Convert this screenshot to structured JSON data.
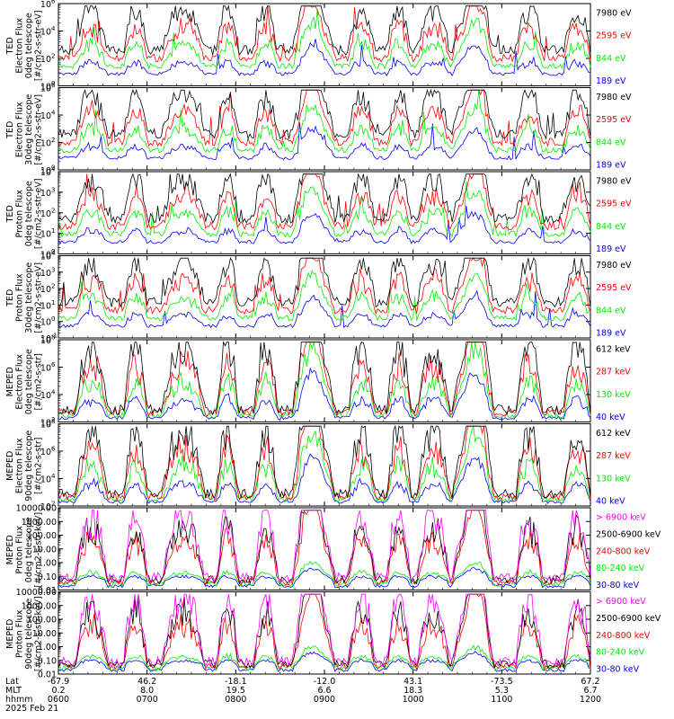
{
  "colors": {
    "black": "#000000",
    "red": "#ff0000",
    "green": "#00ee00",
    "blue": "#0000ff",
    "magenta": "#ff00ff",
    "frame": "#000000"
  },
  "x_axis": {
    "rows": [
      {
        "name": "Lat",
        "values": [
          "-67.9",
          "46.2",
          "-18.1",
          "-12.0",
          "43.1",
          "-73.5",
          "67.2"
        ]
      },
      {
        "name": "MLT",
        "values": [
          "0.2",
          "8.0",
          "19.5",
          "6.6",
          "18.3",
          "5.3",
          "6.7"
        ]
      },
      {
        "name": "hhmm",
        "values": [
          "0600",
          "0700",
          "0800",
          "0900",
          "1000",
          "1100",
          "1200"
        ]
      }
    ],
    "date": "2025 Feb 21",
    "range": [
      "0600",
      "1200"
    ]
  },
  "chart_data": [
    {
      "type": "line",
      "id": "ted-e-0",
      "ylabel_lines": [
        "TED",
        "Electron Flux",
        "0deg telescope",
        "[#/cm2-s-str-eV]"
      ],
      "scale": "log",
      "ylim_exp": [
        0,
        6
      ],
      "yticks": [
        {
          "base": "10",
          "exp": "0"
        },
        {
          "base": "10",
          "exp": "2"
        },
        {
          "base": "10",
          "exp": "4"
        },
        {
          "base": "10",
          "exp": "6"
        }
      ],
      "legend": [
        {
          "label": "7980 eV",
          "color": "#000000"
        },
        {
          "label": "2595 eV",
          "color": "#ff0000"
        },
        {
          "label": "844 eV",
          "color": "#00ee00"
        },
        {
          "label": "189 eV",
          "color": "#0000ff"
        }
      ]
    },
    {
      "type": "line",
      "id": "ted-e-30",
      "ylabel_lines": [
        "TED",
        "Electron Flux",
        "30deg telescope",
        "[#/cm2-s-str-eV]"
      ],
      "scale": "log",
      "ylim_exp": [
        0,
        6
      ],
      "yticks": [
        {
          "base": "10",
          "exp": "0"
        },
        {
          "base": "10",
          "exp": "2"
        },
        {
          "base": "10",
          "exp": "4"
        },
        {
          "base": "10",
          "exp": "6"
        }
      ],
      "legend": [
        {
          "label": "7980 eV",
          "color": "#000000"
        },
        {
          "label": "2595 eV",
          "color": "#ff0000"
        },
        {
          "label": "844 eV",
          "color": "#00ee00"
        },
        {
          "label": "189 eV",
          "color": "#0000ff"
        }
      ]
    },
    {
      "type": "line",
      "id": "ted-p-0",
      "ylabel_lines": [
        "TED",
        "Proton Flux",
        "0deg telescope",
        "[#/cm2-s-str-eV]"
      ],
      "scale": "log",
      "ylim_exp": [
        0,
        4
      ],
      "yticks": [
        {
          "base": "10",
          "exp": "0"
        },
        {
          "base": "10",
          "exp": "1"
        },
        {
          "base": "10",
          "exp": "2"
        },
        {
          "base": "10",
          "exp": "3"
        },
        {
          "base": "10",
          "exp": "4"
        }
      ],
      "legend": [
        {
          "label": "7980 eV",
          "color": "#000000"
        },
        {
          "label": "2595 eV",
          "color": "#ff0000"
        },
        {
          "label": "844 eV",
          "color": "#00ee00"
        },
        {
          "label": "189 eV",
          "color": "#0000ff"
        }
      ]
    },
    {
      "type": "line",
      "id": "ted-p-30",
      "ylabel_lines": [
        "TED",
        "Proton Flux",
        "30deg telescope",
        "[#/cm2-s-str-eV]"
      ],
      "scale": "log",
      "ylim_exp": [
        -1,
        4
      ],
      "yticks": [
        {
          "base": "10",
          "exp": "-1"
        },
        {
          "base": "10",
          "exp": "0"
        },
        {
          "base": "10",
          "exp": "1"
        },
        {
          "base": "10",
          "exp": "2"
        },
        {
          "base": "10",
          "exp": "3"
        },
        {
          "base": "10",
          "exp": "4"
        }
      ],
      "legend": [
        {
          "label": "7980 eV",
          "color": "#000000"
        },
        {
          "label": "2595 eV",
          "color": "#ff0000"
        },
        {
          "label": "844 eV",
          "color": "#00ee00"
        },
        {
          "label": "189 eV",
          "color": "#0000ff"
        }
      ]
    },
    {
      "type": "line",
      "id": "meped-e-0",
      "ylabel_lines": [
        "MEPED",
        "Electron Flux",
        "0deg telescope",
        "[#/cm2-s-str]"
      ],
      "scale": "log",
      "ylim_exp": [
        2,
        8
      ],
      "yticks": [
        {
          "base": "10",
          "exp": "2"
        },
        {
          "base": "10",
          "exp": "4"
        },
        {
          "base": "10",
          "exp": "6"
        },
        {
          "base": "10",
          "exp": "8"
        }
      ],
      "legend": [
        {
          "label": "612 keV",
          "color": "#000000"
        },
        {
          "label": "287 keV",
          "color": "#ff0000"
        },
        {
          "label": "130 keV",
          "color": "#00ee00"
        },
        {
          "label": "40 keV",
          "color": "#0000ff"
        }
      ]
    },
    {
      "type": "line",
      "id": "meped-e-90",
      "ylabel_lines": [
        "MEPED",
        "Electron Flux",
        "90deg telescope",
        "[#/cm2-s-str]"
      ],
      "scale": "log",
      "ylim_exp": [
        2,
        8
      ],
      "yticks": [
        {
          "base": "10",
          "exp": "2"
        },
        {
          "base": "10",
          "exp": "4"
        },
        {
          "base": "10",
          "exp": "6"
        },
        {
          "base": "10",
          "exp": "8"
        }
      ],
      "legend": [
        {
          "label": "612 keV",
          "color": "#000000"
        },
        {
          "label": "287 keV",
          "color": "#ff0000"
        },
        {
          "label": "130 keV",
          "color": "#00ee00"
        },
        {
          "label": "40 keV",
          "color": "#0000ff"
        }
      ]
    },
    {
      "type": "line",
      "id": "meped-p-0",
      "ylabel_lines": [
        "MEPED",
        "Proton Flux",
        "0deg telescope",
        "[#/cm2-s-str-keV]"
      ],
      "scale": "log",
      "ylim_exp": [
        -2,
        4
      ],
      "yticks": [
        {
          "text": "0.01"
        },
        {
          "text": "0.10"
        },
        {
          "text": "1.00"
        },
        {
          "text": "10.00"
        },
        {
          "text": "100.00"
        },
        {
          "text": "1000.00"
        },
        {
          "text": "10000.00"
        }
      ],
      "legend": [
        {
          "label": "> 6900 keV",
          "color": "#ff00ff"
        },
        {
          "label": "2500-6900 keV",
          "color": "#000000"
        },
        {
          "label": "240-800 keV",
          "color": "#ff0000"
        },
        {
          "label": "80-240 keV",
          "color": "#00ee00"
        },
        {
          "label": "30-80 keV",
          "color": "#0000ff"
        }
      ]
    },
    {
      "type": "line",
      "id": "meped-p-90",
      "ylabel_lines": [
        "MEPED",
        "Proton Flux",
        "90deg telescope",
        "[#/cm2-s-str-keV]"
      ],
      "scale": "log",
      "ylim_exp": [
        -2,
        4
      ],
      "yticks": [
        {
          "text": "0.01"
        },
        {
          "text": "0.10"
        },
        {
          "text": "1.00"
        },
        {
          "text": "10.00"
        },
        {
          "text": "100.00"
        },
        {
          "text": "1000.00"
        },
        {
          "text": "10000.00"
        }
      ],
      "legend": [
        {
          "label": "> 6900 keV",
          "color": "#ff00ff"
        },
        {
          "label": "2500-6900 keV",
          "color": "#000000"
        },
        {
          "label": "240-800 keV",
          "color": "#ff0000"
        },
        {
          "label": "80-240 keV",
          "color": "#00ee00"
        },
        {
          "label": "30-80 keV",
          "color": "#0000ff"
        }
      ]
    }
  ]
}
